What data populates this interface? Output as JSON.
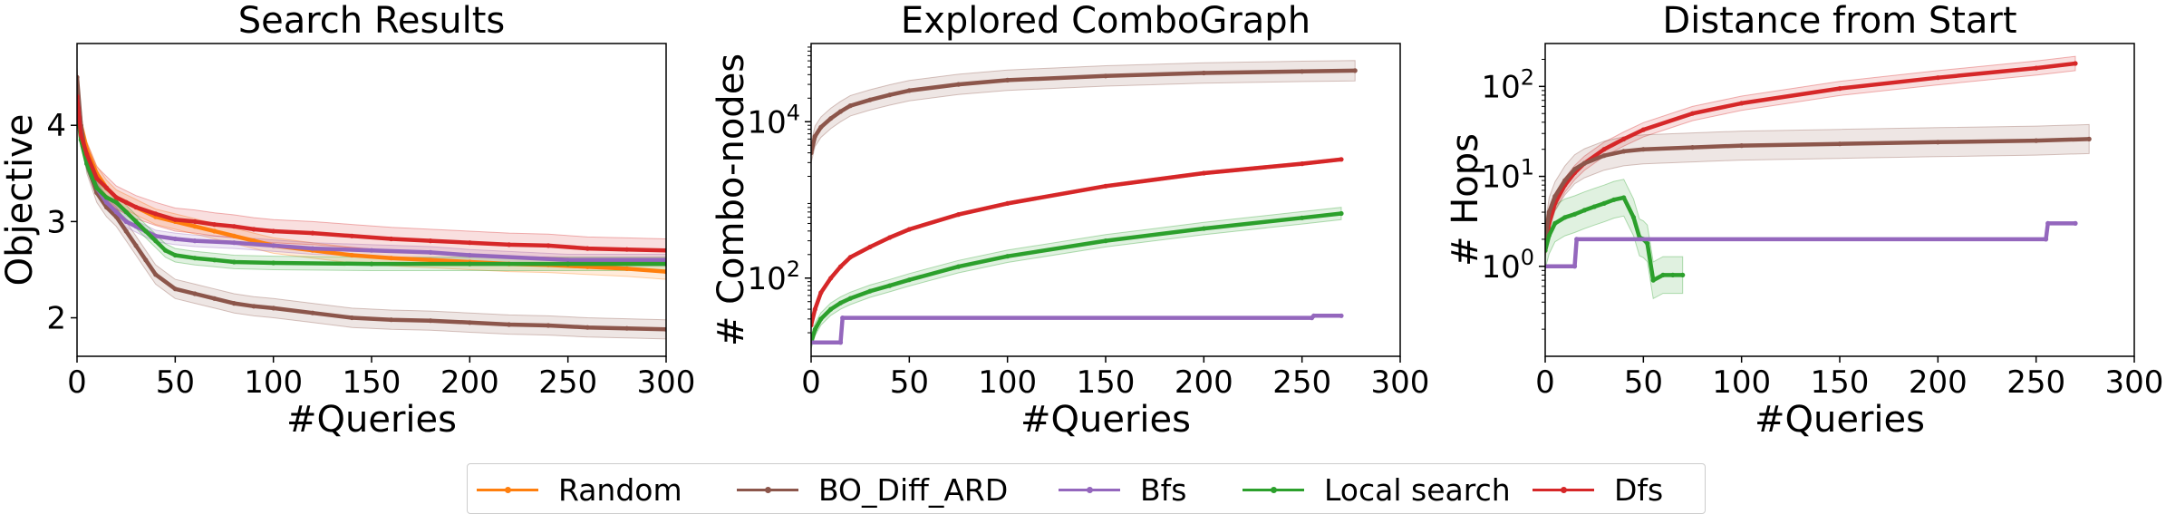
{
  "legend": {
    "entries": [
      {
        "label": "Random",
        "color": "#ff7f0e"
      },
      {
        "label": "BO_Diff_ARD",
        "color": "#8c564b"
      },
      {
        "label": "Bfs",
        "color": "#9467bd"
      },
      {
        "label": "Local search",
        "color": "#2ca02c"
      },
      {
        "label": "Dfs",
        "color": "#d62728"
      }
    ]
  },
  "chart_data": [
    {
      "type": "line",
      "title": "Search Results",
      "xlabel": "#Queries",
      "ylabel": "Objective",
      "xlim": [
        0,
        300
      ],
      "ylim": [
        1.6,
        4.85
      ],
      "yscale": "linear",
      "xticks": [
        0,
        50,
        100,
        150,
        200,
        250,
        300
      ],
      "yticks": [
        2,
        3,
        4
      ],
      "xtick_labels": [
        "0",
        "50",
        "100",
        "150",
        "200",
        "250",
        "300"
      ],
      "ytick_labels": [
        "2",
        "3",
        "4"
      ],
      "grid": false,
      "series": [
        {
          "name": "Random",
          "color": "#ff7f0e",
          "band": 0.08,
          "x": [
            0,
            2,
            5,
            10,
            15,
            20,
            25,
            30,
            40,
            50,
            60,
            70,
            80,
            90,
            100,
            120,
            140,
            160,
            180,
            200,
            220,
            240,
            260,
            280,
            300
          ],
          "y": [
            4.4,
            4.0,
            3.75,
            3.5,
            3.35,
            3.25,
            3.2,
            3.15,
            3.05,
            3.0,
            2.95,
            2.9,
            2.85,
            2.8,
            2.75,
            2.7,
            2.65,
            2.62,
            2.6,
            2.58,
            2.56,
            2.55,
            2.53,
            2.51,
            2.48
          ]
        },
        {
          "name": "BO_Diff_ARD",
          "color": "#8c564b",
          "band": 0.1,
          "x": [
            0,
            2,
            5,
            10,
            15,
            20,
            25,
            30,
            35,
            40,
            50,
            60,
            70,
            80,
            90,
            100,
            120,
            140,
            160,
            180,
            200,
            220,
            240,
            260,
            280,
            300
          ],
          "y": [
            4.5,
            4.0,
            3.6,
            3.3,
            3.15,
            3.05,
            2.9,
            2.75,
            2.6,
            2.45,
            2.3,
            2.25,
            2.2,
            2.15,
            2.12,
            2.1,
            2.05,
            2.0,
            1.98,
            1.97,
            1.95,
            1.93,
            1.92,
            1.9,
            1.89,
            1.88
          ]
        },
        {
          "name": "Bfs",
          "color": "#9467bd",
          "band": 0.06,
          "x": [
            0,
            2,
            5,
            10,
            15,
            20,
            25,
            30,
            35,
            40,
            50,
            60,
            80,
            100,
            120,
            150,
            180,
            200,
            250,
            300
          ],
          "y": [
            4.3,
            3.9,
            3.6,
            3.35,
            3.2,
            3.1,
            3.0,
            2.95,
            2.9,
            2.85,
            2.82,
            2.8,
            2.78,
            2.75,
            2.72,
            2.7,
            2.68,
            2.65,
            2.6,
            2.6
          ]
        },
        {
          "name": "Local search",
          "color": "#2ca02c",
          "band": 0.07,
          "x": [
            0,
            2,
            5,
            10,
            15,
            20,
            25,
            30,
            35,
            40,
            45,
            50,
            60,
            70,
            80,
            100,
            150,
            200,
            250,
            300
          ],
          "y": [
            4.2,
            3.85,
            3.6,
            3.35,
            3.25,
            3.2,
            3.1,
            3.0,
            2.9,
            2.8,
            2.7,
            2.65,
            2.62,
            2.6,
            2.58,
            2.57,
            2.56,
            2.56,
            2.56,
            2.56
          ]
        },
        {
          "name": "Dfs",
          "color": "#d62728",
          "band": 0.12,
          "x": [
            0,
            2,
            5,
            10,
            15,
            20,
            25,
            30,
            40,
            50,
            60,
            70,
            80,
            90,
            100,
            120,
            140,
            160,
            180,
            200,
            220,
            240,
            260,
            280,
            300
          ],
          "y": [
            4.3,
            3.9,
            3.7,
            3.45,
            3.35,
            3.25,
            3.2,
            3.15,
            3.08,
            3.02,
            3.0,
            2.97,
            2.95,
            2.92,
            2.9,
            2.88,
            2.85,
            2.82,
            2.8,
            2.78,
            2.76,
            2.75,
            2.72,
            2.71,
            2.7
          ]
        }
      ]
    },
    {
      "type": "line",
      "title": "Explored ComboGraph",
      "xlabel": "#Queries",
      "ylabel": "# Combo-nodes",
      "xlim": [
        0,
        300
      ],
      "ylim": [
        10,
        100000
      ],
      "yscale": "log",
      "xticks": [
        0,
        50,
        100,
        150,
        200,
        250,
        300
      ],
      "yticks": [
        100,
        10000
      ],
      "xtick_labels": [
        "0",
        "50",
        "100",
        "150",
        "200",
        "250",
        "300"
      ],
      "ytick_labels": [
        "10^2",
        "10^4"
      ],
      "grid": false,
      "series": [
        {
          "name": "BO_Diff_ARD",
          "color": "#8c564b",
          "band_factor": 1.35,
          "x": [
            0,
            2,
            5,
            10,
            15,
            20,
            30,
            40,
            50,
            75,
            100,
            150,
            200,
            250,
            277
          ],
          "y": [
            4000,
            6500,
            8500,
            11000,
            13500,
            16000,
            19000,
            22000,
            25000,
            30000,
            34000,
            38500,
            42000,
            44000,
            45000
          ]
        },
        {
          "name": "Dfs",
          "color": "#d62728",
          "band_factor": 1.05,
          "x": [
            0,
            2,
            5,
            10,
            15,
            20,
            30,
            40,
            50,
            75,
            100,
            150,
            200,
            250,
            270
          ],
          "y": [
            25,
            40,
            65,
            100,
            140,
            185,
            250,
            330,
            420,
            650,
            900,
            1500,
            2200,
            2900,
            3300
          ]
        },
        {
          "name": "Local search",
          "color": "#2ca02c",
          "band_factor": 1.2,
          "x": [
            0,
            2,
            5,
            10,
            15,
            20,
            30,
            40,
            50,
            75,
            100,
            150,
            200,
            250,
            270
          ],
          "y": [
            15,
            22,
            30,
            40,
            48,
            55,
            68,
            80,
            95,
            140,
            190,
            300,
            430,
            590,
            670
          ]
        },
        {
          "name": "Bfs",
          "color": "#9467bd",
          "band_factor": 1.02,
          "x": [
            0,
            15,
            16,
            255,
            256,
            270
          ],
          "y": [
            15,
            15,
            31,
            31,
            33,
            33
          ]
        }
      ]
    },
    {
      "type": "line",
      "title": "Distance from Start",
      "xlabel": "#Queries",
      "ylabel": "# Hops",
      "xlim": [
        0,
        300
      ],
      "ylim": [
        0.1,
        300
      ],
      "yscale": "log",
      "xticks": [
        0,
        50,
        100,
        150,
        200,
        250,
        300
      ],
      "yticks": [
        1,
        10,
        100
      ],
      "xtick_labels": [
        "0",
        "50",
        "100",
        "150",
        "200",
        "250",
        "300"
      ],
      "ytick_labels": [
        "10^0",
        "10^1",
        "10^2"
      ],
      "grid": false,
      "series": [
        {
          "name": "Dfs",
          "color": "#d62728",
          "band_factor": 1.2,
          "x": [
            0,
            2,
            5,
            10,
            15,
            20,
            30,
            40,
            50,
            75,
            100,
            150,
            200,
            250,
            270
          ],
          "y": [
            1.5,
            3,
            5,
            8,
            11,
            14,
            20,
            26,
            33,
            50,
            65,
            95,
            125,
            160,
            180
          ]
        },
        {
          "name": "BO_Diff_ARD",
          "color": "#8c564b",
          "band_factor": 1.45,
          "x": [
            0,
            2,
            5,
            10,
            15,
            20,
            30,
            40,
            50,
            75,
            100,
            150,
            200,
            250,
            277
          ],
          "y": [
            2,
            4,
            6,
            9,
            12,
            14,
            17,
            19,
            20,
            21,
            22,
            23,
            24,
            25,
            26
          ]
        },
        {
          "name": "Local search",
          "color": "#2ca02c",
          "band_factor": 1.6,
          "x": [
            0,
            2,
            5,
            10,
            15,
            20,
            25,
            30,
            35,
            40,
            45,
            48,
            50,
            52,
            55,
            60,
            65,
            70
          ],
          "y": [
            1.5,
            2.2,
            3,
            3.5,
            3.8,
            4.2,
            4.6,
            5,
            5.5,
            5.8,
            3.5,
            2.1,
            2.0,
            1.8,
            0.7,
            0.8,
            0.8,
            0.8
          ]
        },
        {
          "name": "Bfs",
          "color": "#9467bd",
          "band_factor": 1.0,
          "x": [
            0,
            15,
            16,
            255,
            256,
            270
          ],
          "y": [
            1,
            1,
            2,
            2,
            3,
            3
          ]
        }
      ]
    }
  ]
}
